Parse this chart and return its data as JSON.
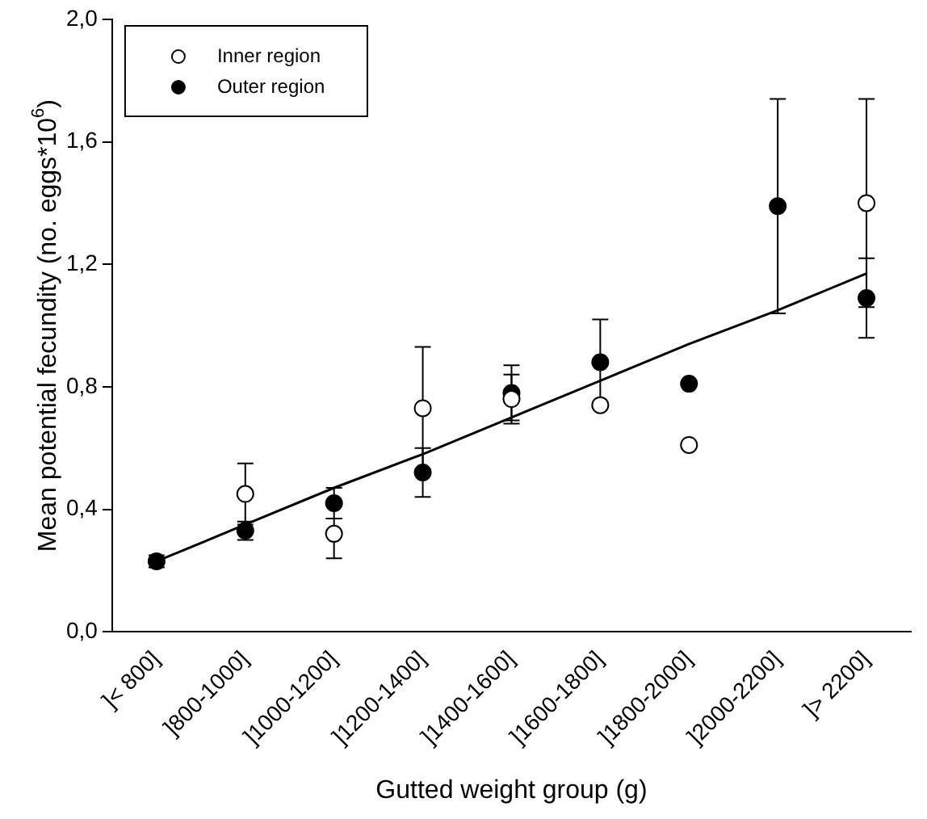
{
  "chart_data": {
    "type": "scatter",
    "xlabel": "Gutted weight group (g)",
    "ylabel": "Mean potential fecundity (no. eggs*10$^{6}$)",
    "categories": [
      "]< 800]",
      "]800-1000]",
      "]1000-1200]",
      "]1200-1400]",
      "]1400-1600]",
      "]1600-1800]",
      "]1800-2000]",
      "]2000-2200]",
      "]> 2200]"
    ],
    "series": [
      {
        "name": "Inner region",
        "color": "#ffffff",
        "values": [
          null,
          0.45,
          0.32,
          0.73,
          0.76,
          0.74,
          0.61,
          null,
          1.4
        ],
        "errors": [
          null,
          0.1,
          [
            0.24,
            0.37
          ],
          0.2,
          0.08,
          null,
          null,
          null,
          0.34
        ]
      },
      {
        "name": "Outer region",
        "color": "#000000",
        "values": [
          0.23,
          0.33,
          0.42,
          0.52,
          0.78,
          0.88,
          0.81,
          1.39,
          1.09
        ],
        "errors": [
          0.02,
          0.03,
          0.05,
          0.08,
          0.09,
          0.14,
          null,
          0.35,
          0.13
        ]
      },
      {
        "type": "line",
        "color": "#000000",
        "marker": "none",
        "line_style": "solid",
        "values": [
          0.23,
          0.35,
          0.47,
          0.58,
          0.7,
          0.82,
          0.94,
          1.05,
          1.17
        ]
      }
    ],
    "ylim": [
      0,
      2.0
    ],
    "yticks": [
      {
        "value": 0,
        "label": "0,0"
      },
      {
        "value": 0.4,
        "label": "0,4"
      },
      {
        "value": 0.8,
        "label": "0,8"
      },
      {
        "value": 1.2,
        "label": "1,2"
      },
      {
        "value": 1.6,
        "label": "1,6"
      },
      {
        "value": 2.0,
        "label": "2,0"
      }
    ],
    "grid": false,
    "legend": "top left"
  }
}
